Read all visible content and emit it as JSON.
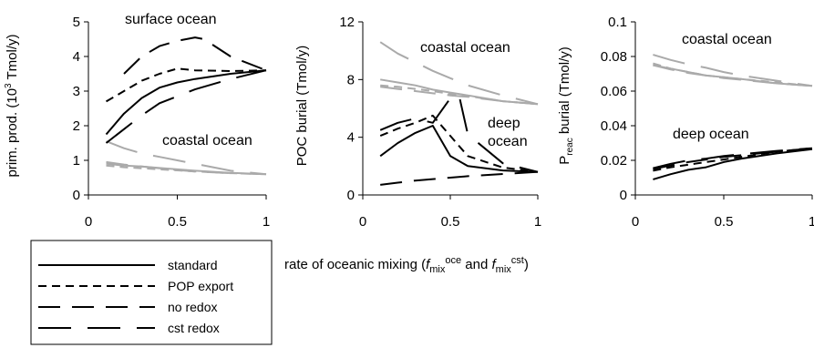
{
  "figure": {
    "shared_xlabel": "rate of oceanic mixing (",
    "shared_xlabel_f1": "f",
    "shared_xlabel_sub1": "mix",
    "shared_xlabel_sup1": "oce",
    "shared_xlabel_and": " and ",
    "shared_xlabel_f2": "f",
    "shared_xlabel_sub2": "mix",
    "shared_xlabel_sup2": "cst",
    "shared_xlabel_close": ")",
    "legend": [
      {
        "label": "standard",
        "style": "solid"
      },
      {
        "label": "POP export",
        "style": "dash-short"
      },
      {
        "label": "no redox",
        "style": "dash-long"
      },
      {
        "label": "cst redox",
        "style": "dash-longgap"
      }
    ],
    "colors": {
      "deep": "#000000",
      "coastal": "#aaaaaa"
    }
  },
  "chart_data": [
    {
      "type": "line",
      "ylabel_main": "prim. prod. (10",
      "ylabel_sup": "3",
      "ylabel_unit": " Tmol/y)",
      "xlim": [
        0,
        1
      ],
      "ylim": [
        0,
        5
      ],
      "xticks": [
        "0",
        "0.5",
        "1"
      ],
      "yticks": [
        "0",
        "1",
        "2",
        "3",
        "4",
        "5"
      ],
      "annotations": [
        "surface ocean",
        "coastal ocean"
      ],
      "series": [
        {
          "group": "surface",
          "style": "solid",
          "x": [
            0.1,
            0.2,
            0.3,
            0.4,
            0.5,
            0.6,
            0.8,
            1.0
          ],
          "y": [
            1.75,
            2.35,
            2.8,
            3.1,
            3.25,
            3.35,
            3.5,
            3.6
          ]
        },
        {
          "group": "surface",
          "style": "dash-short",
          "x": [
            0.1,
            0.2,
            0.3,
            0.4,
            0.5,
            0.6,
            0.8,
            1.0
          ],
          "y": [
            2.7,
            3.0,
            3.3,
            3.5,
            3.65,
            3.6,
            3.58,
            3.6
          ]
        },
        {
          "group": "surface",
          "style": "dash-long",
          "x": [
            0.2,
            0.3,
            0.4,
            0.5,
            0.6,
            0.65,
            0.8,
            1.0
          ],
          "y": [
            3.5,
            4.0,
            4.3,
            4.45,
            4.55,
            4.5,
            4.0,
            3.6
          ]
        },
        {
          "group": "surface",
          "style": "dash-longgap",
          "x": [
            0.1,
            0.2,
            0.3,
            0.4,
            0.5,
            0.6,
            0.8,
            1.0
          ],
          "y": [
            1.5,
            1.9,
            2.3,
            2.65,
            2.85,
            3.05,
            3.35,
            3.6
          ]
        },
        {
          "group": "coastal",
          "style": "solid",
          "x": [
            0.1,
            0.2,
            0.3,
            0.4,
            0.5,
            0.6,
            0.8,
            1.0
          ],
          "y": [
            0.9,
            0.85,
            0.82,
            0.78,
            0.74,
            0.7,
            0.64,
            0.6
          ]
        },
        {
          "group": "coastal",
          "style": "dash-short",
          "x": [
            0.1,
            0.2,
            0.3,
            0.4,
            0.5,
            0.6,
            0.8,
            1.0
          ],
          "y": [
            0.85,
            0.8,
            0.77,
            0.74,
            0.71,
            0.68,
            0.63,
            0.6
          ]
        },
        {
          "group": "coastal",
          "style": "dash-long",
          "x": [
            0.1,
            0.2,
            0.3,
            0.4,
            0.5,
            0.6,
            0.8,
            1.0
          ],
          "y": [
            0.95,
            0.88,
            0.82,
            0.77,
            0.72,
            0.68,
            0.63,
            0.6
          ]
        },
        {
          "group": "coastal",
          "style": "dash-longgap",
          "x": [
            0.1,
            0.2,
            0.3,
            0.4,
            0.5,
            0.6,
            0.8,
            1.0
          ],
          "y": [
            1.55,
            1.35,
            1.2,
            1.1,
            1.0,
            0.9,
            0.7,
            0.6
          ]
        }
      ]
    },
    {
      "type": "line",
      "ylabel_main": "POC burial (Tmol/y)",
      "xlim": [
        0,
        1
      ],
      "ylim": [
        0,
        12
      ],
      "xticks": [
        "0",
        "0.5",
        "1"
      ],
      "yticks": [
        "0",
        "4",
        "8",
        "12"
      ],
      "annotations": [
        "coastal ocean",
        "deep",
        "ocean"
      ],
      "series": [
        {
          "group": "deep",
          "style": "solid",
          "x": [
            0.1,
            0.2,
            0.3,
            0.4,
            0.5,
            0.6,
            0.8,
            1.0
          ],
          "y": [
            2.7,
            3.6,
            4.3,
            4.8,
            2.7,
            2.0,
            1.7,
            1.6
          ]
        },
        {
          "group": "deep",
          "style": "dash-short",
          "x": [
            0.1,
            0.2,
            0.3,
            0.4,
            0.5,
            0.6,
            0.8,
            1.0
          ],
          "y": [
            4.1,
            4.6,
            5.0,
            5.5,
            4.1,
            2.7,
            1.9,
            1.6
          ]
        },
        {
          "group": "deep",
          "style": "dash-long",
          "x": [
            0.1,
            0.2,
            0.3,
            0.4,
            0.5,
            0.6,
            0.8,
            1.0
          ],
          "y": [
            0.7,
            0.85,
            1.0,
            1.1,
            1.2,
            1.3,
            1.45,
            1.6
          ]
        },
        {
          "group": "deep",
          "style": "dash-longgap",
          "x": [
            0.1,
            0.2,
            0.3,
            0.4,
            0.5,
            0.55,
            0.6,
            0.8,
            1.0
          ],
          "y": [
            4.5,
            5.0,
            5.3,
            5.0,
            6.7,
            6.9,
            4.2,
            2.2,
            1.6
          ]
        },
        {
          "group": "coastal",
          "style": "solid",
          "x": [
            0.1,
            0.2,
            0.3,
            0.4,
            0.5,
            0.6,
            0.8,
            1.0
          ],
          "y": [
            8.0,
            7.8,
            7.6,
            7.3,
            7.1,
            6.9,
            6.5,
            6.3
          ]
        },
        {
          "group": "coastal",
          "style": "dash-short",
          "x": [
            0.1,
            0.2,
            0.3,
            0.4,
            0.5,
            0.6,
            0.8,
            1.0
          ],
          "y": [
            7.6,
            7.5,
            7.35,
            7.2,
            7.0,
            6.85,
            6.5,
            6.3
          ]
        },
        {
          "group": "coastal",
          "style": "dash-long",
          "x": [
            0.1,
            0.2,
            0.3,
            0.4,
            0.5,
            0.6,
            0.8,
            1.0
          ],
          "y": [
            7.5,
            7.35,
            7.2,
            7.05,
            6.9,
            6.8,
            6.5,
            6.3
          ]
        },
        {
          "group": "coastal",
          "style": "dash-longgap",
          "x": [
            0.1,
            0.2,
            0.3,
            0.4,
            0.5,
            0.6,
            0.8,
            1.0
          ],
          "y": [
            10.6,
            9.8,
            9.2,
            8.6,
            8.1,
            7.6,
            6.9,
            6.3
          ]
        }
      ]
    },
    {
      "type": "line",
      "ylabel_main": "P",
      "ylabel_sub": "reac",
      "ylabel_unit": " burial (Tmol/y)",
      "xlim": [
        0,
        1
      ],
      "ylim": [
        0,
        0.1
      ],
      "xticks": [
        "0",
        "0.5",
        "1"
      ],
      "yticks": [
        "0",
        "0.02",
        "0.04",
        "0.06",
        "0.08",
        "0.1"
      ],
      "annotations": [
        "coastal ocean",
        "deep ocean"
      ],
      "series": [
        {
          "group": "deep",
          "style": "solid",
          "x": [
            0.1,
            0.2,
            0.3,
            0.4,
            0.5,
            0.6,
            0.8,
            1.0
          ],
          "y": [
            0.009,
            0.012,
            0.0145,
            0.016,
            0.019,
            0.021,
            0.024,
            0.0265
          ]
        },
        {
          "group": "deep",
          "style": "dash-short",
          "x": [
            0.1,
            0.2,
            0.3,
            0.4,
            0.5,
            0.6,
            0.8,
            1.0
          ],
          "y": [
            0.014,
            0.016,
            0.0175,
            0.019,
            0.0205,
            0.022,
            0.025,
            0.027
          ]
        },
        {
          "group": "deep",
          "style": "dash-long",
          "x": [
            0.1,
            0.2,
            0.3,
            0.4,
            0.5,
            0.6,
            0.8,
            1.0
          ],
          "y": [
            0.015,
            0.017,
            0.019,
            0.0205,
            0.022,
            0.023,
            0.025,
            0.027
          ]
        },
        {
          "group": "deep",
          "style": "dash-longgap",
          "x": [
            0.1,
            0.2,
            0.3,
            0.4,
            0.5,
            0.6,
            0.8,
            1.0
          ],
          "y": [
            0.0155,
            0.018,
            0.02,
            0.021,
            0.0225,
            0.0235,
            0.0255,
            0.027
          ]
        },
        {
          "group": "coastal",
          "style": "solid",
          "x": [
            0.1,
            0.2,
            0.3,
            0.4,
            0.5,
            0.6,
            0.8,
            1.0
          ],
          "y": [
            0.075,
            0.073,
            0.071,
            0.069,
            0.068,
            0.067,
            0.0645,
            0.063
          ]
        },
        {
          "group": "coastal",
          "style": "dash-short",
          "x": [
            0.1,
            0.2,
            0.3,
            0.4,
            0.5,
            0.6,
            0.8,
            1.0
          ],
          "y": [
            0.076,
            0.073,
            0.071,
            0.069,
            0.068,
            0.067,
            0.065,
            0.063
          ]
        },
        {
          "group": "coastal",
          "style": "dash-long",
          "x": [
            0.1,
            0.2,
            0.3,
            0.4,
            0.5,
            0.6,
            0.8,
            1.0
          ],
          "y": [
            0.075,
            0.0725,
            0.0705,
            0.069,
            0.0675,
            0.0665,
            0.0645,
            0.063
          ]
        },
        {
          "group": "coastal",
          "style": "dash-longgap",
          "x": [
            0.1,
            0.2,
            0.3,
            0.4,
            0.5,
            0.6,
            0.8,
            1.0
          ],
          "y": [
            0.081,
            0.078,
            0.0755,
            0.0735,
            0.071,
            0.069,
            0.066,
            0.063
          ]
        }
      ]
    }
  ]
}
